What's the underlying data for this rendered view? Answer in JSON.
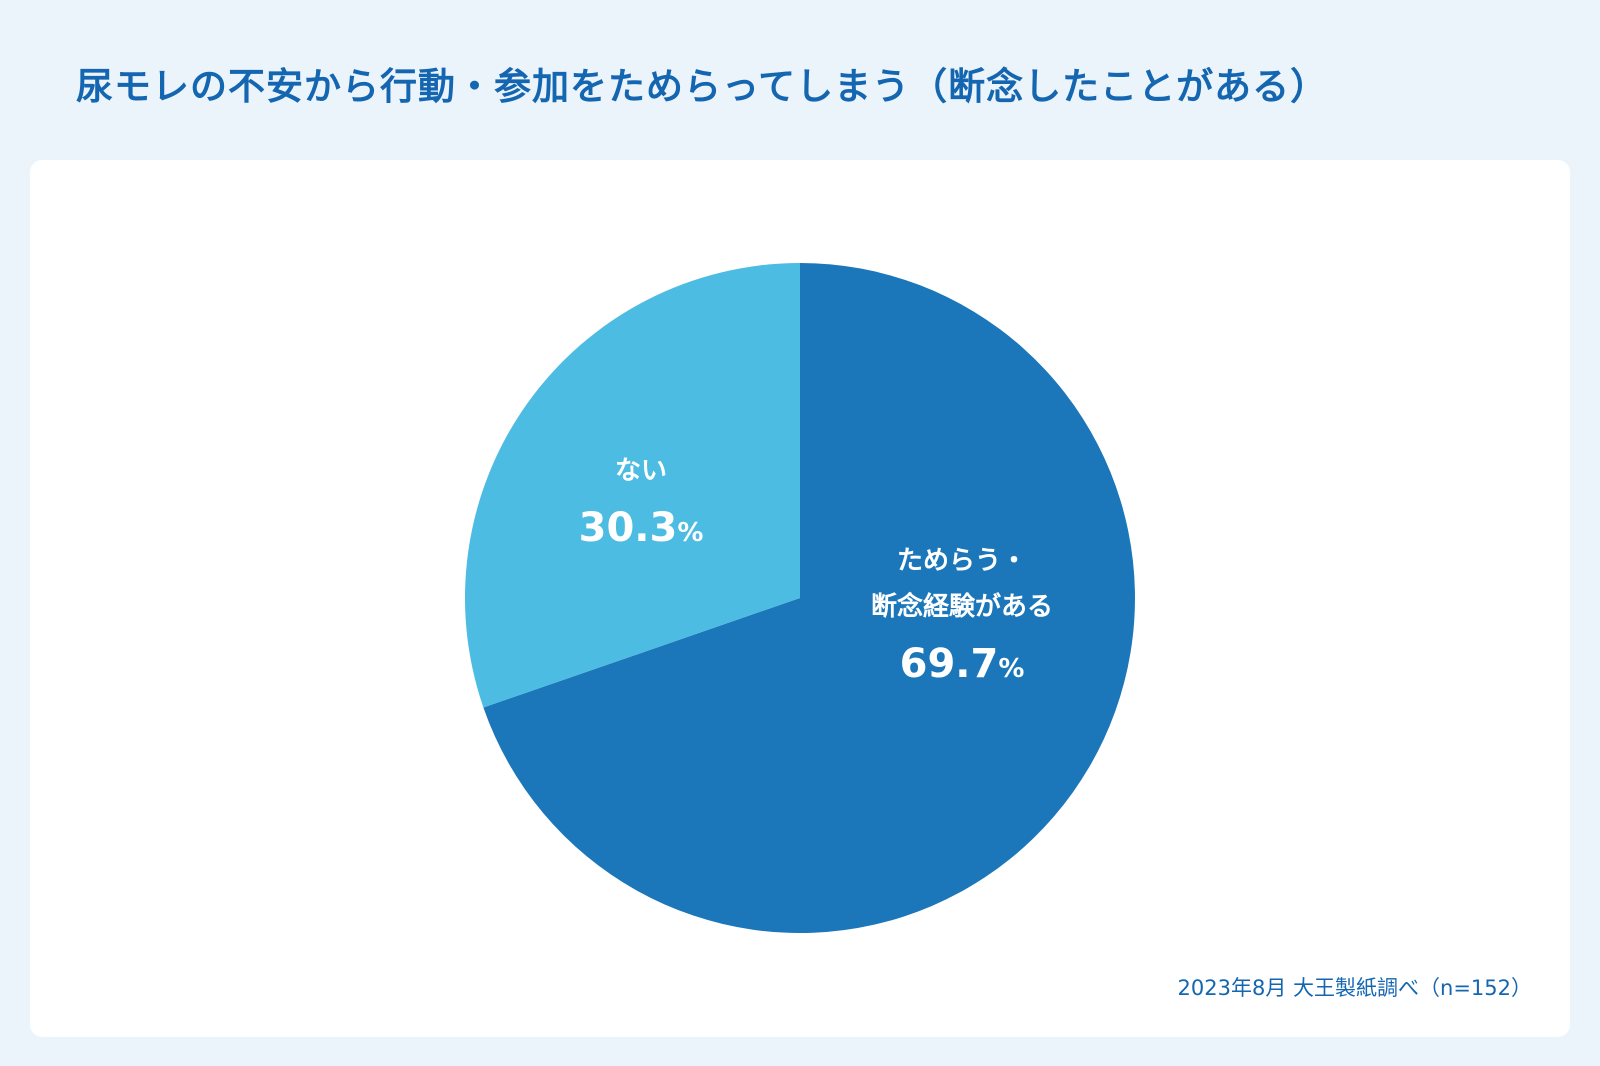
{
  "title": "尿モレの不安から行動・参加をためらってしまう（断念したことがある）",
  "source": "2023年8月 大王製紙調べ（n=152）",
  "chart_data": {
    "type": "pie",
    "title": "尿モレの不安から行動・参加をためらってしまう（断念したことがある）",
    "slices": [
      {
        "label_lines": [
          "ためらう・",
          "断念経験がある"
        ],
        "value": 69.7,
        "value_text": "69.7",
        "unit": "%",
        "color": "#1b77ba"
      },
      {
        "label_lines": [
          "ない"
        ],
        "value": 30.3,
        "value_text": "30.3",
        "unit": "%",
        "color": "#4dbce2"
      }
    ],
    "start": "top",
    "direction": "clockwise",
    "n": 152
  }
}
